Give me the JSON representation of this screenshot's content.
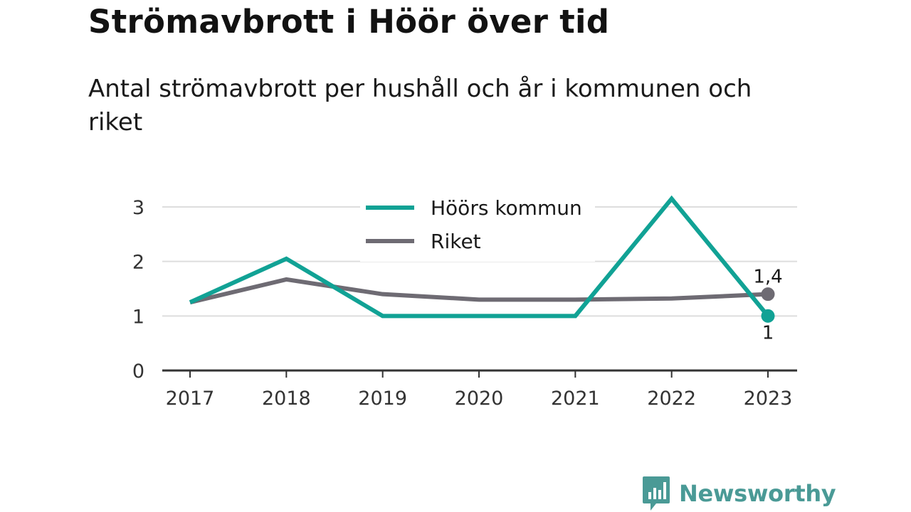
{
  "title": "Strömavbrott i Höör över tid",
  "subtitle": "Antal strömavbrott per hushåll och år i kommunen och riket",
  "logo": {
    "text": "Newsworthy",
    "icon": "chart-speech-bubble-icon",
    "color": "#4a9a96"
  },
  "chart_data": {
    "type": "line",
    "x": [
      "2017",
      "2018",
      "2019",
      "2020",
      "2021",
      "2022",
      "2023"
    ],
    "ylim": [
      0,
      3
    ],
    "yticks": [
      "0",
      "1",
      "2",
      "3"
    ],
    "grid": true,
    "legend_position": "top",
    "series": [
      {
        "name": "Höörs kommun",
        "color": "#11a295",
        "values": [
          1.25,
          2.05,
          1.0,
          1.0,
          1.0,
          3.15,
          1.0
        ],
        "end_label": "1"
      },
      {
        "name": "Riket",
        "color": "#6e6b73",
        "values": [
          1.25,
          1.67,
          1.4,
          1.3,
          1.3,
          1.32,
          1.4
        ],
        "end_label": "1,4"
      }
    ]
  }
}
